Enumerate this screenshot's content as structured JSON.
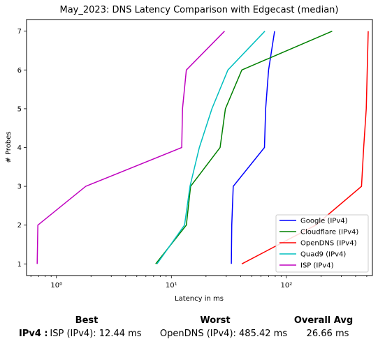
{
  "chart_data": {
    "type": "line",
    "title": "May_2023: DNS Latency Comparison with Edgecast (median)",
    "xlabel": "Latency in ms",
    "ylabel": "# Probes",
    "xscale": "log",
    "xlim": [
      0.55,
      560
    ],
    "ylim": [
      0.7,
      7.3
    ],
    "x_ticks": [
      1,
      10,
      100
    ],
    "x_tick_labels": [
      "10⁰",
      "10¹",
      "10²"
    ],
    "y_ticks": [
      1,
      2,
      3,
      4,
      5,
      6,
      7
    ],
    "y_tick_labels": [
      "1",
      "2",
      "3",
      "4",
      "5",
      "6",
      "7"
    ],
    "grid": false,
    "legend_position": "lower-right",
    "series": [
      {
        "name": "Google (IPv4)",
        "color": "#0000ff",
        "points": [
          [
            33.2,
            1
          ],
          [
            33.5,
            2
          ],
          [
            34.5,
            3
          ],
          [
            64.5,
            4
          ],
          [
            66,
            5
          ],
          [
            70,
            6
          ],
          [
            79,
            7
          ]
        ]
      },
      {
        "name": "Cloudflare (IPv4)",
        "color": "#008000",
        "points": [
          [
            7.3,
            1
          ],
          [
            13.5,
            2
          ],
          [
            14.7,
            3
          ],
          [
            26.5,
            4
          ],
          [
            29.5,
            5
          ],
          [
            41,
            6
          ],
          [
            250,
            7
          ]
        ]
      },
      {
        "name": "OpenDNS (IPv4)",
        "color": "#ff0000",
        "points": [
          [
            41,
            1
          ],
          [
            180,
            2
          ],
          [
            450,
            3
          ],
          [
            470,
            4
          ],
          [
            495,
            5
          ],
          [
            505,
            6
          ],
          [
            515,
            7
          ]
        ]
      },
      {
        "name": "Quad9 (IPv4)",
        "color": "#00bfbf",
        "points": [
          [
            7.5,
            1
          ],
          [
            13,
            2
          ],
          [
            14.5,
            3
          ],
          [
            17.5,
            4
          ],
          [
            22.5,
            5
          ],
          [
            31,
            6
          ],
          [
            65,
            7
          ]
        ]
      },
      {
        "name": "ISP (IPv4)",
        "color": "#bf00bf",
        "points": [
          [
            0.68,
            1
          ],
          [
            0.69,
            2
          ],
          [
            1.8,
            3
          ],
          [
            12.3,
            4
          ],
          [
            12.5,
            5
          ],
          [
            13.5,
            6
          ],
          [
            29,
            7
          ]
        ]
      }
    ]
  },
  "summary": {
    "headers": {
      "best": "Best",
      "worst": "Worst",
      "overall": "Overall Avg"
    },
    "row_label": "IPv4 :",
    "best": "ISP (IPv4): 12.44 ms",
    "worst": "OpenDNS (IPv4): 485.42 ms",
    "overall": "26.66 ms"
  }
}
